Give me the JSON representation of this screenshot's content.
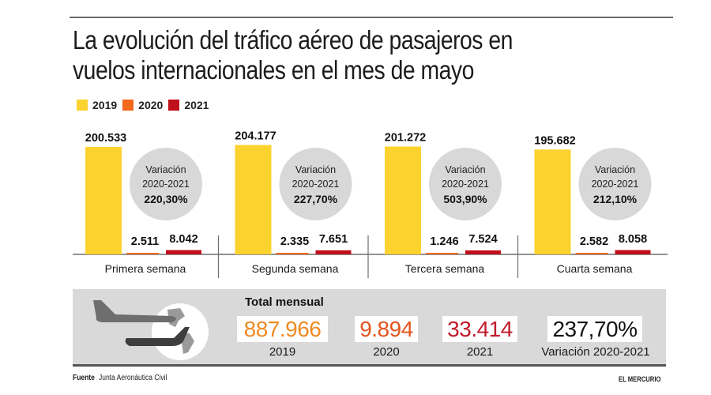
{
  "header": {
    "title_line1": "La evolución del tráfico aéreo de pasajeros en",
    "title_line2": "vuelos internacionales en el mes de mayo"
  },
  "colors": {
    "2019": "#fcd22f",
    "2020": "#f26a1b",
    "2021": "#c0101b",
    "circle": "#d8d8d8",
    "band": "#d9d9d9",
    "total_2019": "#ef8a22",
    "total_2020": "#e2531d",
    "total_2021": "#c21a2a"
  },
  "chart_data": {
    "type": "bar",
    "title": "La evolución del tráfico aéreo de pasajeros en vuelos internacionales en el mes de mayo",
    "xlabel": "",
    "ylabel": "",
    "categories": [
      "Primera semana",
      "Segunda semana",
      "Tercera semana",
      "Cuarta semana"
    ],
    "series": [
      {
        "name": "2019",
        "values": [
          200533,
          204177,
          201272,
          195682
        ],
        "labels": [
          "200.533",
          "204.177",
          "201.272",
          "195.682"
        ]
      },
      {
        "name": "2020",
        "values": [
          2511,
          2335,
          1246,
          2582
        ],
        "labels": [
          "2.511",
          "2.335",
          "1.246",
          "2.582"
        ]
      },
      {
        "name": "2021",
        "values": [
          8042,
          7651,
          7524,
          8058
        ],
        "labels": [
          "8.042",
          "7.651",
          "7.524",
          "8.058"
        ]
      }
    ],
    "annotations": [
      {
        "category": "Primera semana",
        "line1": "Variación",
        "line2": "2020-2021",
        "value": "220,30%"
      },
      {
        "category": "Segunda semana",
        "line1": "Variación",
        "line2": "2020-2021",
        "value": "227,70%"
      },
      {
        "category": "Tercera semana",
        "line1": "Variación",
        "line2": "2020-2021",
        "value": "503,90%"
      },
      {
        "category": "Cuarta semana",
        "line1": "Variación",
        "line2": "2020-2021",
        "value": "212,10%"
      }
    ],
    "ylim": [
      0,
      210000
    ],
    "grid": false,
    "legend": "top-left"
  },
  "legend": [
    {
      "label": "2019",
      "color": "#fcd22f"
    },
    {
      "label": "2020",
      "color": "#f26a1b"
    },
    {
      "label": "2021",
      "color": "#c0101b"
    }
  ],
  "totals": {
    "heading": "Total mensual",
    "items": [
      {
        "value": "887.966",
        "caption": "2019"
      },
      {
        "value": "9.894",
        "caption": "2020"
      },
      {
        "value": "33.414",
        "caption": "2021"
      },
      {
        "value": "237,70%",
        "caption": "Variación 2020-2021"
      }
    ]
  },
  "footer": {
    "source_label": "Fuente",
    "source_text": "Junta Aeronáutica Civil",
    "brand": "EL MERCURIO"
  },
  "icons": {
    "illustration": "airplanes-globe-icon"
  }
}
